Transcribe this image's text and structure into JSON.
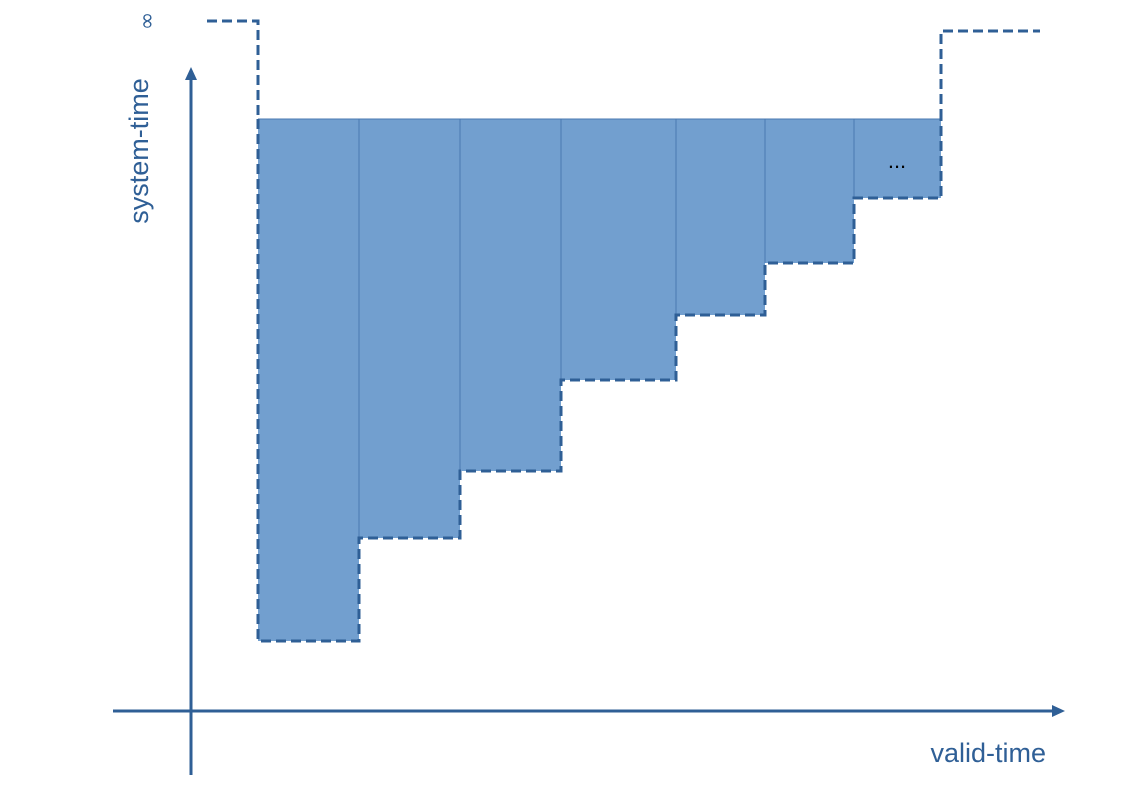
{
  "diagram": {
    "x_axis_label": "valid-time",
    "y_axis_label": "system-time",
    "infinity_symbol": "∞",
    "ellipsis": "...",
    "colors": {
      "axis": "#2f5f96",
      "fill": "#729fcf",
      "dash": "#2f5f96",
      "divider": "#4a78b0"
    }
  }
}
